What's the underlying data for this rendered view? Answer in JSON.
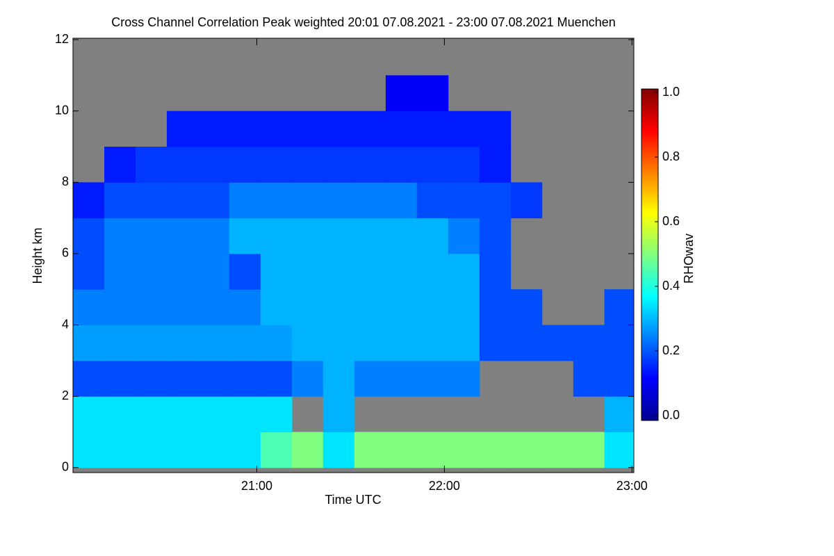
{
  "chart_data": {
    "type": "heatmap",
    "title": "Cross Channel Correlation Peak weighted   20:01 07.08.2021 - 23:00 07.08.2021 Muenchen",
    "xlabel": "Time UTC",
    "ylabel": "Height km",
    "colorbar_label": "RHOwav",
    "xlim": [
      20.02,
      23.01
    ],
    "ylim": [
      -0.14,
      12.04
    ],
    "xticks": [
      {
        "value": 21,
        "label": "21:00"
      },
      {
        "value": 22,
        "label": "22:00"
      },
      {
        "value": 23,
        "label": "23:00"
      }
    ],
    "yticks": [
      0,
      2,
      4,
      6,
      8,
      10,
      12
    ],
    "clim": [
      0,
      1
    ],
    "cticks": [
      {
        "value": 0,
        "label": "0.0"
      },
      {
        "value": 0.2,
        "label": "0.2"
      },
      {
        "value": 0.4,
        "label": "0.4"
      },
      {
        "value": 0.6,
        "label": "0.6"
      },
      {
        "value": 0.8,
        "label": "0.8"
      },
      {
        "value": 1,
        "label": "1.0"
      }
    ],
    "colormap": "jet",
    "missing_color": "#808080",
    "xbins": [
      20.02,
      20.187,
      20.353,
      20.52,
      20.687,
      20.853,
      21.02,
      21.187,
      21.353,
      21.52,
      21.687,
      21.853,
      22.02,
      22.187,
      22.353,
      22.52,
      22.687,
      22.853,
      23.01
    ],
    "ybins": [
      0,
      1,
      2,
      3,
      4,
      5,
      6,
      7,
      8,
      9,
      10,
      11,
      12
    ],
    "z": [
      [
        0.35,
        0.35,
        0.35,
        0.35,
        0.35,
        0.35,
        0.45,
        0.5,
        0.35,
        0.5,
        0.5,
        0.5,
        0.5,
        0.5,
        0.5,
        0.5,
        0.5,
        0.35
      ],
      [
        0.35,
        0.35,
        0.35,
        0.35,
        0.35,
        0.35,
        0.35,
        null,
        0.3,
        null,
        null,
        null,
        null,
        null,
        null,
        null,
        null,
        0.3
      ],
      [
        0.2,
        0.2,
        0.2,
        0.2,
        0.2,
        0.2,
        0.2,
        0.25,
        0.3,
        0.25,
        0.25,
        0.25,
        0.25,
        null,
        null,
        null,
        0.2,
        0.2
      ],
      [
        0.28,
        0.28,
        0.28,
        0.28,
        0.28,
        0.28,
        0.28,
        0.3,
        0.3,
        0.3,
        0.3,
        0.3,
        0.3,
        0.2,
        0.2,
        0.2,
        0.2,
        0.2
      ],
      [
        0.25,
        0.25,
        0.25,
        0.25,
        0.25,
        0.25,
        0.3,
        0.3,
        0.3,
        0.3,
        0.3,
        0.3,
        0.3,
        0.2,
        0.2,
        null,
        null,
        0.2
      ],
      [
        0.2,
        0.25,
        0.25,
        0.25,
        0.25,
        0.2,
        0.3,
        0.3,
        0.3,
        0.3,
        0.3,
        0.3,
        0.3,
        0.2,
        null,
        null,
        null,
        null
      ],
      [
        0.2,
        0.25,
        0.25,
        0.25,
        0.25,
        0.3,
        0.3,
        0.3,
        0.3,
        0.3,
        0.3,
        0.3,
        0.25,
        0.2,
        null,
        null,
        null,
        null
      ],
      [
        0.15,
        0.2,
        0.2,
        0.2,
        0.2,
        0.25,
        0.25,
        0.25,
        0.25,
        0.25,
        0.25,
        0.2,
        0.2,
        0.2,
        0.18,
        null,
        null,
        null
      ],
      [
        null,
        0.15,
        0.18,
        0.18,
        0.18,
        0.18,
        0.18,
        0.18,
        0.18,
        0.18,
        0.18,
        0.18,
        0.18,
        0.15,
        null,
        null,
        null,
        null
      ],
      [
        null,
        null,
        null,
        0.15,
        0.15,
        0.15,
        0.15,
        0.15,
        0.15,
        0.15,
        0.15,
        0.15,
        0.15,
        0.15,
        null,
        null,
        null,
        null
      ],
      [
        null,
        null,
        null,
        null,
        null,
        null,
        null,
        null,
        null,
        null,
        0.12,
        0.12,
        null,
        null,
        null,
        null,
        null,
        null
      ],
      [
        null,
        null,
        null,
        null,
        null,
        null,
        null,
        null,
        null,
        null,
        null,
        null,
        null,
        null,
        null,
        null,
        null,
        null
      ]
    ]
  }
}
